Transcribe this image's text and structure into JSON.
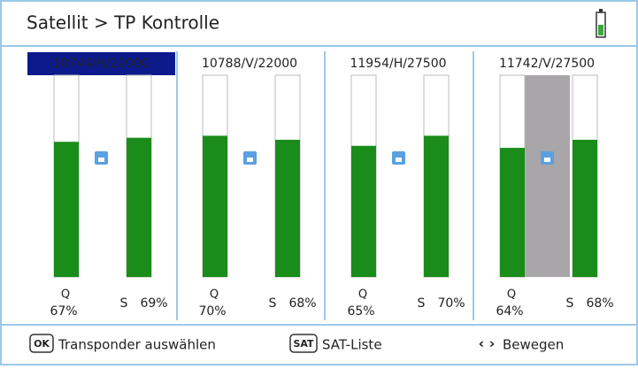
{
  "header": {
    "title": "Satellit > TP Kontrolle"
  },
  "panels": [
    {
      "label": "10744/H/22000",
      "q_name": "Q",
      "q": 67,
      "q_label": "67%",
      "s_name": "S",
      "s": 69,
      "s_label": "69%"
    },
    {
      "label": "10788/V/22000",
      "q_name": "Q",
      "q": 70,
      "q_label": "70%",
      "s_name": "S",
      "s": 68,
      "s_label": "68%"
    },
    {
      "label": "11954/H/27500",
      "q_name": "Q",
      "q": 65,
      "q_label": "65%",
      "s_name": "S",
      "s": 70,
      "s_label": "70%"
    },
    {
      "label": "11742/V/27500",
      "q_name": "Q",
      "q": 64,
      "q_label": "64%",
      "s_name": "S",
      "s": 68,
      "s_label": "68%"
    }
  ],
  "footer": [
    {
      "key": "OK",
      "text": "Transponder auswählen"
    },
    {
      "key": "SAT",
      "text": "SAT-Liste"
    },
    {
      "key": "‹ ›",
      "text": "Bewegen"
    }
  ]
}
